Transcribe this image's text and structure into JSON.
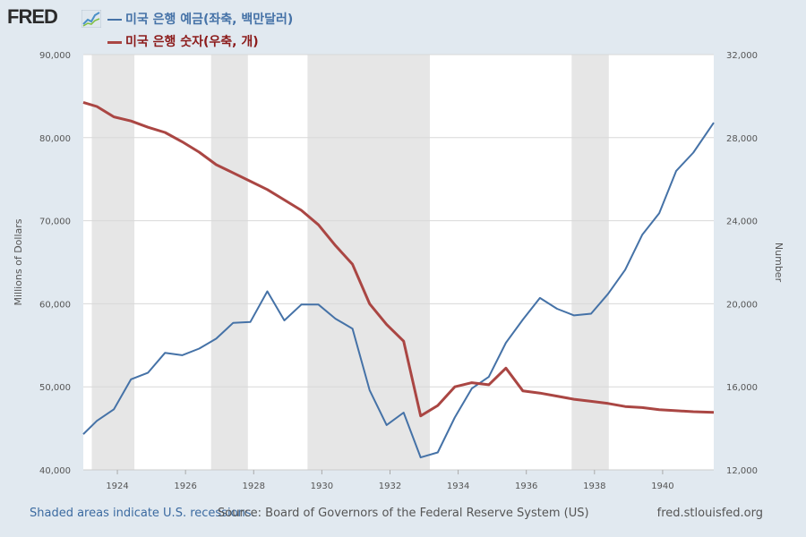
{
  "header": {
    "logo_text": "FRED",
    "logo_icon": "chart-line-icon",
    "legend": [
      {
        "label": "미국 은행 예금(좌축, 백만달러)",
        "color": "#4572a7"
      },
      {
        "label": "미국 은행 숫자(우축, 개)",
        "color": "#aa4643"
      }
    ]
  },
  "footer": {
    "recession_note": "Shaded areas indicate U.S. recessions.",
    "source": "Source: Board of Governors of the Federal Reserve System (US)",
    "site": "fred.stlouisfed.org"
  },
  "chart_data": {
    "type": "line",
    "xlabel": "",
    "ylabel_left": "Millions of Dollars",
    "ylabel_right": "Number",
    "x_ticks": [
      "1924",
      "1926",
      "1928",
      "1930",
      "1932",
      "1934",
      "1936",
      "1938",
      "1940"
    ],
    "x_tick_values": [
      1924,
      1926,
      1928,
      1930,
      1932,
      1934,
      1936,
      1938,
      1940
    ],
    "xlim": [
      1923.0,
      1941.5
    ],
    "y_left_ticks": [
      "40,000",
      "50,000",
      "60,000",
      "70,000",
      "80,000",
      "90,000"
    ],
    "y_left_tick_values": [
      40000,
      50000,
      60000,
      70000,
      80000,
      90000
    ],
    "y_left_lim": [
      40000,
      90000
    ],
    "y_right_ticks": [
      "12,000",
      "16,000",
      "20,000",
      "24,000",
      "28,000",
      "32,000"
    ],
    "y_right_tick_values": [
      12000,
      16000,
      20000,
      24000,
      28000,
      32000
    ],
    "y_right_lim": [
      12000,
      32000
    ],
    "recessions": [
      [
        1923.25,
        1924.5
      ],
      [
        1926.75,
        1927.83
      ],
      [
        1929.58,
        1933.17
      ],
      [
        1937.33,
        1938.42
      ]
    ],
    "series": [
      {
        "name": "미국 은행 예금(좌축, 백만달러)",
        "axis": "left",
        "color": "#4572a7",
        "x": [
          1923.0,
          1923.4,
          1923.9,
          1924.4,
          1924.9,
          1925.4,
          1925.9,
          1926.4,
          1926.9,
          1927.4,
          1927.9,
          1928.4,
          1928.9,
          1929.4,
          1929.9,
          1930.4,
          1930.9,
          1931.4,
          1931.9,
          1932.4,
          1932.9,
          1933.4,
          1933.9,
          1934.4,
          1934.9,
          1935.4,
          1935.9,
          1936.4,
          1936.9,
          1937.4,
          1937.9,
          1938.4,
          1938.9,
          1939.4,
          1939.9,
          1940.4,
          1940.9,
          1941.5
        ],
        "values": [
          44300,
          45900,
          47300,
          50900,
          51700,
          54100,
          53800,
          54600,
          55800,
          57700,
          57800,
          61500,
          58000,
          59900,
          59900,
          58200,
          57000,
          49600,
          45400,
          46900,
          41500,
          42100,
          46300,
          49800,
          51200,
          55300,
          58100,
          60700,
          59400,
          58600,
          58800,
          61200,
          64100,
          68300,
          70900,
          76000,
          78200,
          81800
        ]
      },
      {
        "name": "미국 은행 숫자(우축, 개)",
        "axis": "right",
        "color": "#aa4643",
        "x": [
          1923.0,
          1923.4,
          1923.9,
          1924.4,
          1924.9,
          1925.4,
          1925.9,
          1926.4,
          1926.9,
          1927.4,
          1927.9,
          1928.4,
          1928.9,
          1929.4,
          1929.9,
          1930.4,
          1930.9,
          1931.4,
          1931.9,
          1932.4,
          1932.9,
          1933.4,
          1933.9,
          1934.4,
          1934.9,
          1935.4,
          1935.9,
          1936.4,
          1936.9,
          1937.4,
          1937.9,
          1938.4,
          1938.9,
          1939.4,
          1939.9,
          1940.4,
          1940.9,
          1941.5
        ],
        "values": [
          29700,
          29500,
          29000,
          28800,
          28500,
          28250,
          27800,
          27300,
          26700,
          26300,
          25900,
          25500,
          25000,
          24500,
          23800,
          22800,
          21900,
          20000,
          19000,
          18200,
          14600,
          15100,
          16000,
          16200,
          16100,
          16900,
          15800,
          15700,
          15550,
          15400,
          15300,
          15200,
          15050,
          15000,
          14900,
          14850,
          14800,
          14770
        ]
      }
    ]
  }
}
